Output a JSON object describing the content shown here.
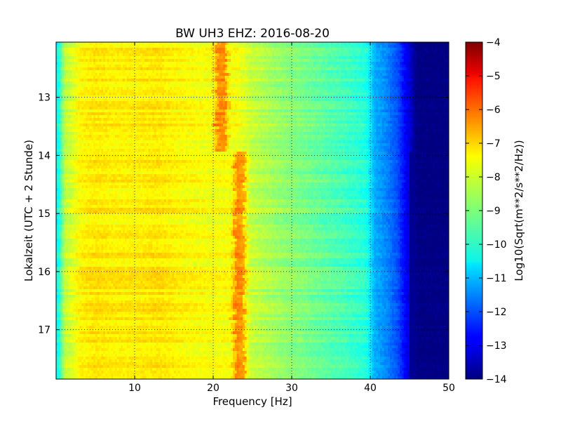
{
  "chart_data": {
    "type": "heatmap",
    "title": "BW UH3 EHZ: 2016-08-20",
    "xlabel": "Frequency [Hz]",
    "ylabel": "Lokalzeit (UTC + 2 Stunde)",
    "xlim": [
      0,
      50
    ],
    "ylim": [
      17.85,
      12.05
    ],
    "xticks": [
      10,
      20,
      30,
      40,
      50
    ],
    "yticks": [
      13,
      14,
      15,
      16,
      17
    ],
    "y_inverted": true,
    "grid": true,
    "colormap": "jet",
    "colorbar": {
      "label": "Log10(Sqrt(m**2/s**2/Hz))",
      "range": [
        -14,
        -4
      ],
      "ticks": [
        -4,
        -5,
        -6,
        -7,
        -8,
        -9,
        -10,
        -11,
        -12,
        -13,
        -14
      ]
    },
    "spectral_profile": {
      "frequency_hz": [
        0,
        0.5,
        1,
        3,
        5,
        7,
        10,
        13,
        16,
        19,
        21,
        23,
        25,
        28,
        31,
        34,
        37,
        39.5,
        40.5,
        42,
        43.5,
        44.5,
        45.5,
        46,
        50
      ],
      "level": [
        -10.2,
        -9.8,
        -8.5,
        -7.7,
        -7.5,
        -7.6,
        -7.6,
        -7.5,
        -7.7,
        -7.8,
        -7.8,
        -7.8,
        -8.3,
        -8.7,
        -9.0,
        -9.3,
        -9.6,
        -9.9,
        -11.0,
        -11.4,
        -12.0,
        -12.8,
        -13.5,
        -14.0,
        -14.0
      ]
    },
    "segments": [
      {
        "time_start": 12.05,
        "time_end": 13.93,
        "tonal_peak_hz": 21.0,
        "upper_cutoff_hz": 45.5
      },
      {
        "time_start": 13.93,
        "time_end": 17.85,
        "tonal_peak_hz": 23.4,
        "upper_cutoff_hz": 45.0
      }
    ]
  }
}
